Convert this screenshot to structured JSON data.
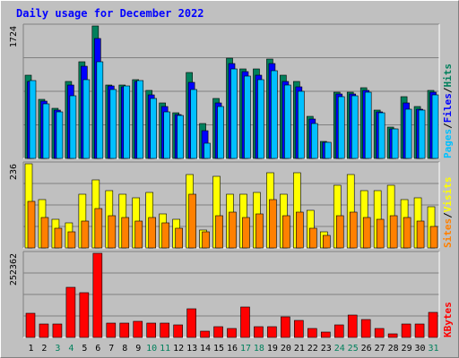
{
  "chart_data": {
    "type": "bar",
    "title": "Daily usage for December 2022",
    "categories": [
      "1",
      "2",
      "3",
      "4",
      "5",
      "6",
      "7",
      "8",
      "9",
      "10",
      "11",
      "12",
      "13",
      "14",
      "15",
      "16",
      "17",
      "18",
      "19",
      "20",
      "21",
      "22",
      "23",
      "24",
      "25",
      "26",
      "27",
      "28",
      "29",
      "30",
      "31"
    ],
    "weekend_days": [
      "3",
      "4",
      "10",
      "11",
      "17",
      "18",
      "24",
      "25",
      "31"
    ],
    "panels": [
      {
        "name": "hits-files-pages",
        "ymax": 1724,
        "ymax_label": "1724",
        "legend": [
          {
            "label": "Pages",
            "color": "#00c0ff"
          },
          {
            "label": "/",
            "color": "#000000"
          },
          {
            "label": "Files",
            "color": "#0000ff"
          },
          {
            "label": "/",
            "color": "#000000"
          },
          {
            "label": "Hits",
            "color": "#00805c"
          }
        ],
        "series": [
          {
            "name": "Hits",
            "color": "#00805c",
            "values": [
              1080,
              770,
              650,
              1000,
              1260,
              1724,
              960,
              960,
              1020,
              880,
              720,
              590,
              1120,
              450,
              780,
              1300,
              1170,
              1160,
              1290,
              1080,
              1000,
              550,
              220,
              860,
              860,
              920,
              630,
              410,
              800,
              670,
              890
            ]
          },
          {
            "name": "Files",
            "color": "#0000ff",
            "values": [
              1000,
              740,
              630,
              950,
              1200,
              1560,
              940,
              930,
              1000,
              830,
              670,
              570,
              990,
              360,
              720,
              1230,
              1130,
              1080,
              1230,
              1000,
              930,
              510,
              210,
              840,
              840,
              890,
              600,
              390,
              720,
              640,
              860
            ]
          },
          {
            "name": "Pages",
            "color": "#00c0ff",
            "values": [
              1010,
              710,
              610,
              820,
              1030,
              1260,
              900,
              940,
              1010,
              780,
              610,
              560,
              900,
              200,
              680,
              1160,
              1070,
              1020,
              1140,
              950,
              870,
              450,
              210,
              800,
              820,
              860,
              590,
              380,
              640,
              630,
              830
            ]
          }
        ]
      },
      {
        "name": "visits-sites",
        "ymax": 236,
        "ymax_label": "236",
        "legend": [
          {
            "label": "Sites",
            "color": "#ff8000"
          },
          {
            "label": "/",
            "color": "#000000"
          },
          {
            "label": "Visits",
            "color": "#ffff00"
          }
        ],
        "series": [
          {
            "name": "Visits",
            "color": "#ffff00",
            "values": [
              236,
              135,
              80,
              70,
              150,
              190,
              160,
              150,
              140,
              155,
              95,
              80,
              205,
              50,
              200,
              150,
              150,
              155,
              210,
              150,
              210,
              105,
              45,
              175,
              205,
              160,
              160,
              175,
              135,
              140,
              115
            ]
          },
          {
            "name": "Sites",
            "color": "#ff8000",
            "values": [
              130,
              85,
              55,
              45,
              75,
              110,
              90,
              85,
              75,
              85,
              70,
              55,
              150,
              45,
              90,
              100,
              85,
              95,
              135,
              90,
              100,
              55,
              35,
              90,
              100,
              85,
              80,
              90,
              85,
              75,
              60
            ]
          }
        ]
      },
      {
        "name": "kbytes",
        "ymax": 252362,
        "ymax_label": "252362",
        "legend": [
          {
            "label": "KBytes",
            "color": "#ff0000"
          }
        ],
        "series": [
          {
            "name": "KBytes",
            "color": "#ff0000",
            "values": [
              73000,
              40000,
              40000,
              150000,
              133000,
              252362,
              42000,
              42000,
              47000,
              42000,
              42000,
              38000,
              85000,
              18000,
              32000,
              28000,
              92000,
              32000,
              33000,
              63000,
              50000,
              27000,
              15000,
              38000,
              67000,
              55000,
              28000,
              10000,
              40000,
              40000,
              75000
            ]
          }
        ]
      }
    ]
  }
}
